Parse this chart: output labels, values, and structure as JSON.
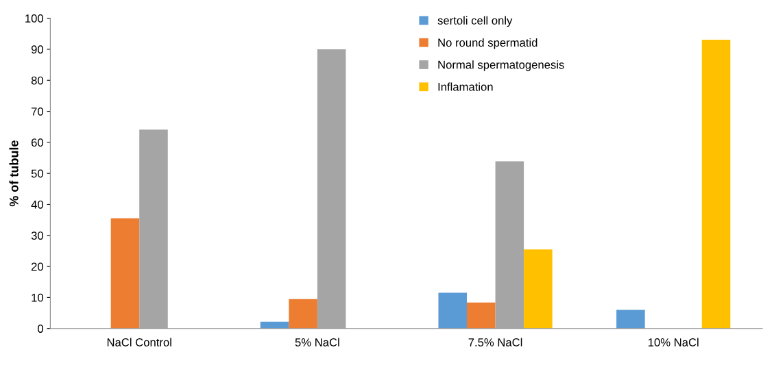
{
  "chart_data": {
    "type": "bar",
    "ylabel": "% of tubule",
    "categories": [
      "NaCl Control",
      "5% NaCl",
      "7.5% NaCl",
      "10% NaCl"
    ],
    "series": [
      {
        "name": "sertoli cell only",
        "color": "#5b9bd5",
        "values": [
          0,
          2.2,
          11.5,
          6.0
        ]
      },
      {
        "name": "No round spermatid",
        "color": "#ed7d31",
        "values": [
          35.5,
          9.5,
          8.4,
          0
        ]
      },
      {
        "name": "Normal spermatogenesis",
        "color": "#a5a5a5",
        "values": [
          64.1,
          90.0,
          53.9,
          0
        ]
      },
      {
        "name": "Inflamation",
        "color": "#ffc000",
        "values": [
          0,
          0,
          25.5,
          93.1
        ]
      }
    ],
    "ylim": [
      0,
      100
    ],
    "yticks": [
      0,
      10,
      20,
      30,
      40,
      50,
      60,
      70,
      80,
      90,
      100
    ],
    "grid": false,
    "legend": "top"
  }
}
